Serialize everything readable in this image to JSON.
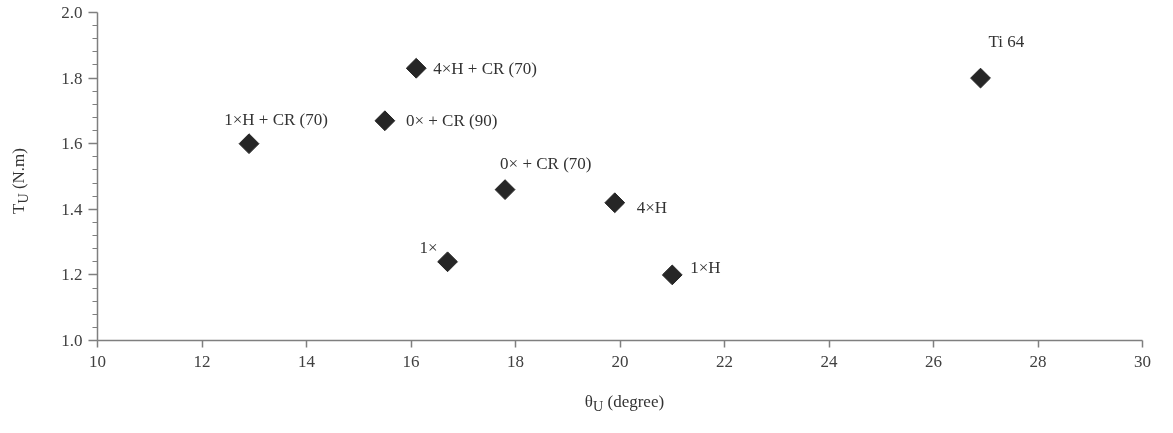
{
  "chart_data": {
    "type": "scatter",
    "xlabel": "θ$_{U}$ (degree)",
    "ylabel": "T$_{U}$ (N.m)",
    "x": [
      12.9,
      15.5,
      16.1,
      16.7,
      17.8,
      19.9,
      21.0,
      26.9
    ],
    "series": [
      {
        "color": "#262626",
        "values": [
          1.6,
          1.67,
          1.83,
          1.24,
          1.46,
          1.42,
          1.2,
          1.8
        ]
      }
    ],
    "xlim": [
      10,
      30
    ],
    "ylim": [
      1.0,
      2.0
    ],
    "xticks": [
      10,
      12,
      14,
      16,
      18,
      20,
      22,
      24,
      26,
      28,
      30
    ],
    "yticks": [
      {
        "value": 1.0,
        "label": "1.0"
      },
      {
        "value": 1.04,
        "label": null
      },
      {
        "value": 1.08,
        "label": null
      },
      {
        "value": 1.12,
        "label": null
      },
      {
        "value": 1.16,
        "label": null
      },
      {
        "value": 1.2,
        "label": "1.2"
      },
      {
        "value": 1.24,
        "label": null
      },
      {
        "value": 1.28,
        "label": null
      },
      {
        "value": 1.32,
        "label": null
      },
      {
        "value": 1.36,
        "label": null
      },
      {
        "value": 1.4,
        "label": "1.4"
      },
      {
        "value": 1.44,
        "label": null
      },
      {
        "value": 1.48,
        "label": null
      },
      {
        "value": 1.52,
        "label": null
      },
      {
        "value": 1.56,
        "label": null
      },
      {
        "value": 1.6,
        "label": "1.6"
      },
      {
        "value": 1.64,
        "label": null
      },
      {
        "value": 1.68,
        "label": null
      },
      {
        "value": 1.72,
        "label": null
      },
      {
        "value": 1.76,
        "label": null
      },
      {
        "value": 1.8,
        "label": "1.8"
      },
      {
        "value": 1.84,
        "label": null
      },
      {
        "value": 1.88,
        "label": null
      },
      {
        "value": 1.92,
        "label": null
      },
      {
        "value": 1.96,
        "label": null
      },
      {
        "value": 2.0,
        "label": "2.0"
      }
    ],
    "marker": "diamond",
    "grid": false,
    "annotations": [
      {
        "text": "1×H + CR (70)",
        "x": 12.9,
        "y": 1.6
      },
      {
        "text": "0× + CR (90)",
        "x": 15.5,
        "y": 1.67
      },
      {
        "text": "4×H + CR (70)",
        "x": 16.1,
        "y": 1.83
      },
      {
        "text": "1×",
        "x": 16.7,
        "y": 1.24
      },
      {
        "text": "0× + CR (70)",
        "x": 17.8,
        "y": 1.46
      },
      {
        "text": "4×H",
        "x": 19.9,
        "y": 1.42
      },
      {
        "text": "1×H",
        "x": 21.0,
        "y": 1.2
      },
      {
        "text": "Ti 64",
        "x": 26.9,
        "y": 1.8
      }
    ]
  }
}
